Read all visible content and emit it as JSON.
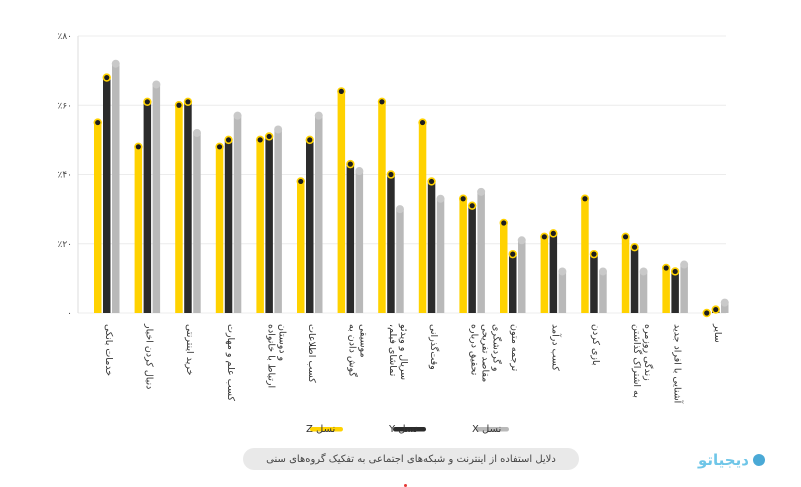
{
  "chart_data": {
    "type": "bar",
    "title": "دلایل استفاده از اینترنت و شبکه‌های اجتماعی به تفکیک گروه‌های سنی",
    "ylim": [
      0,
      80
    ],
    "yticks": [
      {
        "value": 0,
        "label": "۰"
      },
      {
        "value": 20,
        "label": "٪۲۰"
      },
      {
        "value": 40,
        "label": "٪۴۰"
      },
      {
        "value": 60,
        "label": "٪۶۰"
      },
      {
        "value": 80,
        "label": "٪۸۰"
      }
    ],
    "grid": true,
    "legend_position": "bottom-center",
    "categories": [
      [
        "خدمات بانکی"
      ],
      [
        "دنبال کردن اخبار"
      ],
      [
        "خرید اینترنتی"
      ],
      [
        "کسب علم و مهارت"
      ],
      [
        "ارتباط با خانواده",
        "و دوستان"
      ],
      [
        "کسب اطلاعات"
      ],
      [
        "گوش دادن به",
        "موسیقی"
      ],
      [
        "تماشای فیلم،",
        "سریال و ویدئو"
      ],
      [
        "وقت‌گذرانی"
      ],
      [
        "تحقیق درباره",
        "مقاصد تفریحی",
        "و گردشگری"
      ],
      [
        "ترجمه متون"
      ],
      [
        "کسب درآمد"
      ],
      [
        "بازی کردن"
      ],
      [
        "به اشتراک گذاشتن",
        "زندگی روزمره"
      ],
      [
        "آشنایی با افراد جدید"
      ],
      [
        "سایر"
      ]
    ],
    "series": [
      {
        "name": "نسل Z",
        "color": "#ffd200",
        "values": [
          55,
          48,
          60,
          48,
          50,
          38,
          64,
          61,
          55,
          33,
          26,
          22,
          33,
          22,
          13,
          0
        ]
      },
      {
        "name": "نسل Y",
        "color": "#2b2b2b",
        "values": [
          68,
          61,
          61,
          50,
          51,
          50,
          43,
          40,
          38,
          31,
          17,
          23,
          17,
          19,
          12,
          1
        ]
      },
      {
        "name": "نسل X",
        "color": "#b9b9b9",
        "values": [
          72,
          66,
          52,
          57,
          53,
          57,
          41,
          30,
          33,
          35,
          21,
          12,
          12,
          12,
          14,
          3
        ]
      }
    ],
    "legend": [
      {
        "name": "نسل Z",
        "color": "#ffd200"
      },
      {
        "name": "نسل Y",
        "color": "#2b2b2b"
      },
      {
        "name": "نسل X",
        "color": "#b9b9b9"
      }
    ]
  },
  "footer": {
    "brand": "دیجیاتو"
  }
}
